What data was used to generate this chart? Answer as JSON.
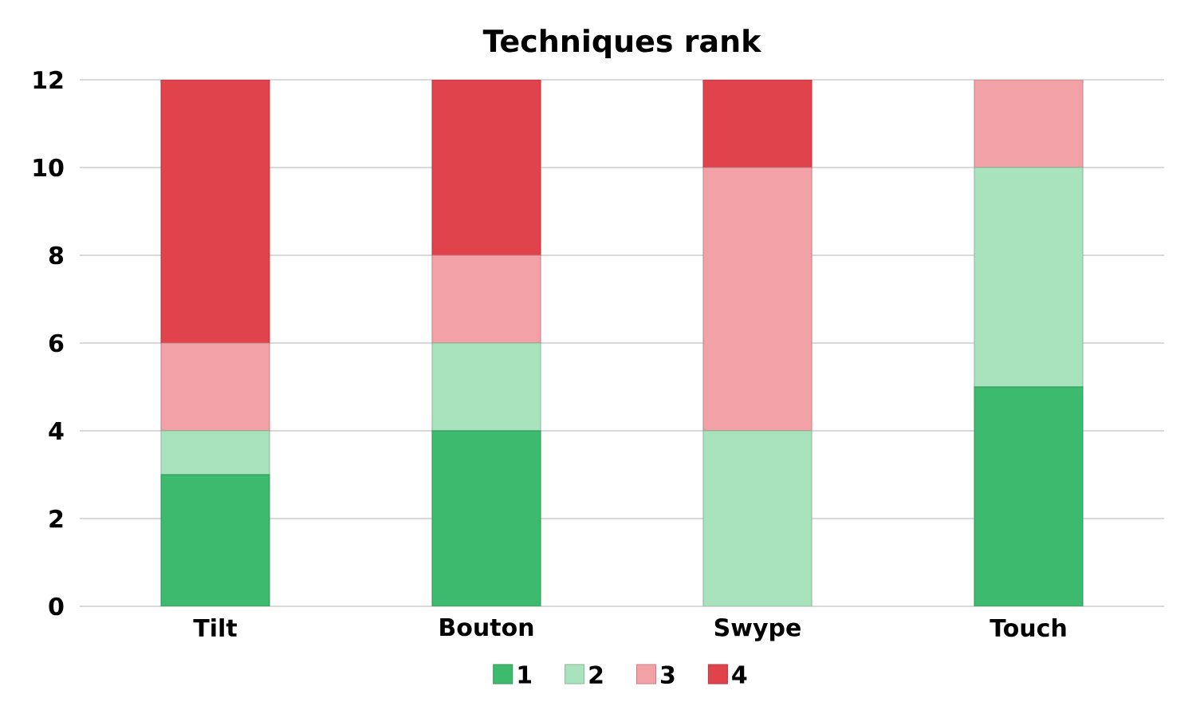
{
  "chart_data": {
    "type": "bar",
    "title": "Techniques rank",
    "categories": [
      "Tilt",
      "Bouton",
      "Swype",
      "Touch"
    ],
    "series": [
      {
        "name": "1",
        "color": "#3dba6e",
        "values": [
          3,
          4,
          0,
          5
        ]
      },
      {
        "name": "2",
        "color": "#a9e3bd",
        "values": [
          1,
          2,
          4,
          5
        ]
      },
      {
        "name": "3",
        "color": "#f2a1a6",
        "values": [
          2,
          2,
          6,
          2
        ]
      },
      {
        "name": "4",
        "color": "#e0434c",
        "values": [
          6,
          4,
          2,
          0
        ]
      }
    ],
    "stacked": true,
    "ylim": [
      0,
      12
    ],
    "yticks": [
      0,
      2,
      4,
      6,
      8,
      10,
      12
    ],
    "grid": "y",
    "legend": "bottom"
  }
}
